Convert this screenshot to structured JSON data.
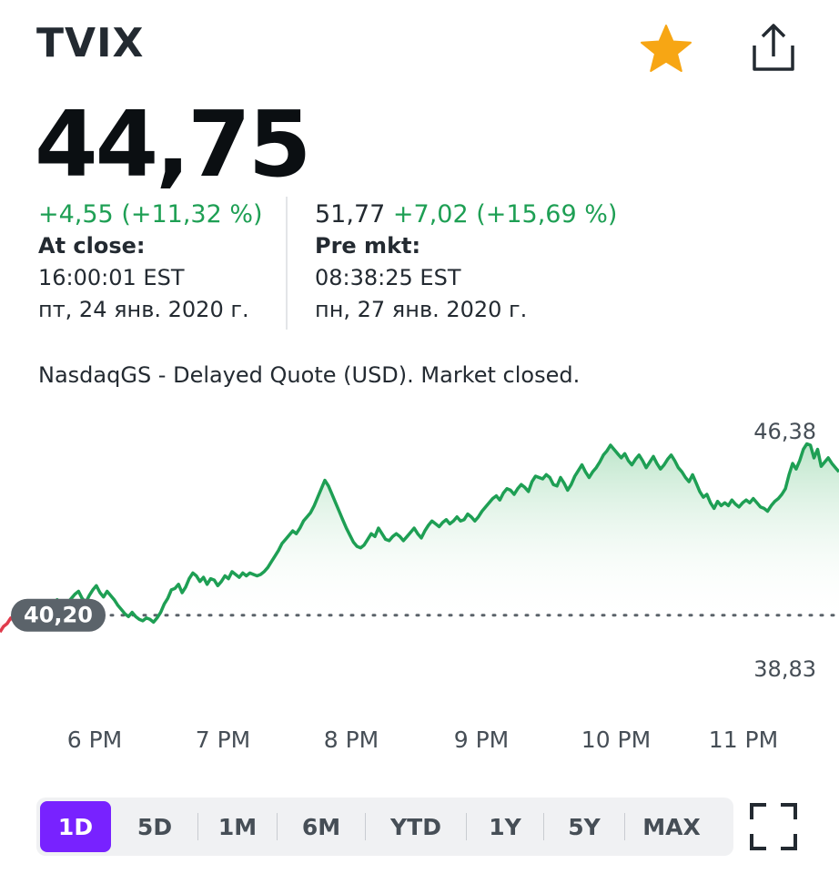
{
  "header": {
    "ticker": "TVIX",
    "favorite_icon": "star-icon",
    "share_icon": "share-icon"
  },
  "quote": {
    "price": "44,75",
    "close_change": "+4,55 (+11,32 %)",
    "close_label": "At close:",
    "close_time": "16:00:01 EST",
    "close_date": "пт, 24 янв. 2020 г.",
    "pre_price": "51,77",
    "pre_change": "+7,02 (+15,69 %)",
    "pre_label": "Pre mkt:",
    "pre_time": "08:38:25 EST",
    "pre_date": "пн, 27 янв. 2020 г.",
    "exchange_note": "NasdaqGS - Delayed Quote (USD). Market closed."
  },
  "chart_data": {
    "type": "area",
    "x_labels": [
      "6 PM",
      "7 PM",
      "8 PM",
      "9 PM",
      "10 PM",
      "11 PM"
    ],
    "previous_close": 40.2,
    "previous_close_label": "40,20",
    "high_label": "46,38",
    "low_label": "38,83",
    "y_range": [
      38.83,
      46.38
    ],
    "grid": false,
    "colors": {
      "up": "#1e9f54",
      "down": "#e0394a",
      "fill_top": "#b9e4c7"
    },
    "series": [
      {
        "values": [
          39.6,
          39.8,
          39.9,
          40.1,
          40.0,
          39.95,
          40.1,
          40.05,
          39.9,
          40.1,
          40.2,
          40.3,
          40.4,
          40.5,
          40.35,
          40.6,
          40.75,
          40.6,
          40.5,
          40.65,
          40.8,
          40.95,
          41.05,
          40.8,
          40.65,
          40.9,
          41.1,
          41.25,
          41.0,
          40.85,
          41.05,
          40.9,
          40.75,
          40.55,
          40.4,
          40.25,
          40.15,
          40.3,
          40.15,
          40.05,
          40.0,
          40.1,
          40.05,
          39.95,
          40.1,
          40.3,
          40.6,
          40.8,
          41.1,
          41.15,
          41.3,
          41.0,
          41.2,
          41.5,
          41.7,
          41.6,
          41.4,
          41.55,
          41.3,
          41.5,
          41.45,
          41.25,
          41.4,
          41.6,
          41.5,
          41.75,
          41.65,
          41.55,
          41.7,
          41.6,
          41.7,
          41.65,
          41.6,
          41.65,
          41.75,
          41.9,
          42.1,
          42.3,
          42.5,
          42.75,
          42.9,
          43.05,
          43.2,
          43.1,
          43.3,
          43.55,
          43.7,
          43.85,
          44.1,
          44.4,
          44.7,
          45.0,
          44.8,
          44.5,
          44.2,
          43.9,
          43.6,
          43.3,
          43.05,
          42.8,
          42.65,
          42.6,
          42.7,
          42.9,
          43.1,
          43.0,
          43.3,
          43.1,
          42.9,
          42.85,
          43.0,
          43.1,
          43.0,
          42.85,
          43.0,
          43.15,
          43.3,
          43.1,
          42.95,
          43.2,
          43.4,
          43.55,
          43.45,
          43.35,
          43.5,
          43.6,
          43.45,
          43.55,
          43.7,
          43.55,
          43.6,
          43.8,
          43.7,
          43.55,
          43.7,
          43.9,
          44.05,
          44.2,
          44.35,
          44.45,
          44.3,
          44.55,
          44.7,
          44.65,
          44.5,
          44.7,
          44.85,
          44.75,
          44.6,
          44.95,
          45.15,
          45.1,
          45.05,
          45.2,
          45.1,
          44.85,
          44.8,
          45.1,
          44.9,
          44.65,
          44.85,
          45.15,
          45.35,
          45.55,
          45.3,
          45.1,
          45.3,
          45.45,
          45.65,
          45.9,
          46.05,
          46.25,
          46.1,
          45.95,
          45.8,
          45.95,
          45.7,
          45.55,
          45.75,
          45.9,
          45.7,
          45.45,
          45.65,
          45.85,
          45.6,
          45.4,
          45.55,
          45.75,
          45.9,
          45.7,
          45.45,
          45.3,
          45.1,
          44.95,
          45.2,
          44.9,
          44.6,
          44.4,
          44.5,
          44.2,
          44.0,
          44.25,
          44.1,
          44.2,
          44.1,
          44.3,
          44.15,
          44.05,
          44.2,
          44.3,
          44.2,
          44.35,
          44.2,
          44.05,
          44.0,
          43.9,
          44.1,
          44.25,
          44.35,
          44.5,
          44.7,
          45.2,
          45.6,
          45.4,
          45.7,
          46.1,
          46.3,
          46.25,
          45.8,
          46.1,
          45.5,
          45.65,
          45.8,
          45.6,
          45.45,
          45.3
        ]
      }
    ]
  },
  "timeframes": {
    "items": [
      "1D",
      "5D",
      "1M",
      "6M",
      "YTD",
      "1Y",
      "5Y",
      "MAX"
    ],
    "active": "1D",
    "fullscreen_icon": "fullscreen-icon"
  }
}
